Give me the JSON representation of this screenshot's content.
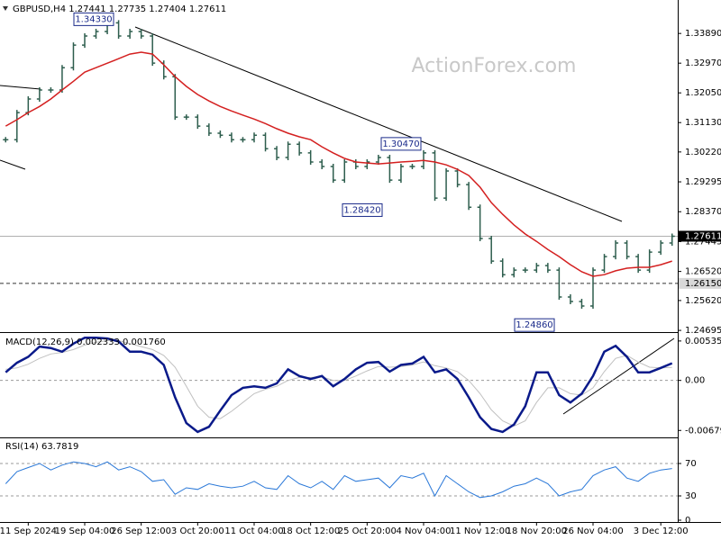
{
  "chart_data": [
    {
      "type": "price",
      "title": "GBPUSD,H4  1.27441 1.27735 1.27404 1.27611",
      "watermark": "ActionForex.com",
      "ylim": [
        1.2467,
        1.3487
      ],
      "yticks": [
        {
          "value": 1.3389,
          "label": "1.33890"
        },
        {
          "value": 1.3297,
          "label": "1.32970"
        },
        {
          "value": 1.3205,
          "label": "1.32050"
        },
        {
          "value": 1.3113,
          "label": "1.31130"
        },
        {
          "value": 1.3022,
          "label": "1.30220"
        },
        1.29295,
        {
          "value": 1.2837,
          "label": "1.28370"
        },
        1.27445,
        {
          "value": 1.2652,
          "label": "1.26520"
        },
        {
          "value": 1.2562,
          "label": "1.25620"
        },
        1.24695
      ],
      "current": 1.27611,
      "level": {
        "value": 1.2615,
        "label": "1.26150"
      },
      "annotations": [
        {
          "value": 1.3433,
          "label": "1.34330"
        },
        {
          "value": 1.3047,
          "label": "1.30470"
        },
        {
          "value": 1.2842,
          "label": "1.28420"
        },
        {
          "value": 1.2486,
          "label": "1.24860"
        }
      ],
      "series": [
        {
          "type": "bar",
          "color": "#2e5e4e",
          "values": [
            1.306,
            1.3144,
            1.3186,
            1.3214,
            1.3214,
            1.3283,
            1.3353,
            1.3381,
            1.3395,
            1.3422,
            1.3381,
            1.3395,
            1.3381,
            1.3297,
            1.3255,
            1.313,
            1.313,
            1.3102,
            1.308,
            1.3074,
            1.306,
            1.306,
            1.3074,
            1.3032,
            1.3005,
            1.3046,
            1.3019,
            1.2991,
            1.2977,
            1.2935,
            1.2991,
            1.2977,
            1.2991,
            1.3005,
            1.2935,
            1.2977,
            1.2977,
            1.3019,
            1.2879,
            1.2963,
            1.2921,
            1.2851,
            1.2754,
            1.2684,
            1.2642,
            1.2656,
            1.2656,
            1.267,
            1.2656,
            1.2573,
            1.2559,
            1.2545,
            1.2656,
            1.2698,
            1.274,
            1.2698,
            1.2656,
            1.2712,
            1.274,
            1.27611
          ]
        },
        {
          "type": "line",
          "color": "#d42020",
          "values": [
            1.3102,
            1.3122,
            1.3144,
            1.3163,
            1.3186,
            1.3214,
            1.3241,
            1.3269,
            1.3283,
            1.3297,
            1.3311,
            1.3325,
            1.3331,
            1.3325,
            1.3292,
            1.3255,
            1.3225,
            1.32,
            1.318,
            1.3163,
            1.3149,
            1.3136,
            1.3124,
            1.311,
            1.3094,
            1.308,
            1.3069,
            1.306,
            1.3038,
            1.3019,
            1.3002,
            1.2991,
            1.2988,
            1.2985,
            1.2988,
            1.2991,
            1.2993,
            1.2996,
            1.2991,
            1.2982,
            1.2968,
            1.2949,
            1.2913,
            1.2865,
            1.2829,
            1.2796,
            1.2768,
            1.2745,
            1.272,
            1.2698,
            1.2673,
            1.2651,
            1.2637,
            1.2642,
            1.2654,
            1.2662,
            1.2665,
            1.2665,
            1.2673,
            1.2684
          ]
        }
      ]
    },
    {
      "type": "line",
      "title": "MACD(12,26,9) 0.002333 0.001760",
      "ylim": [
        -0.0075,
        0.0062
      ],
      "yticks": [
        0.005359,
        {
          "value": 0,
          "label": "0.00"
        },
        -0.006798
      ],
      "levels": [
        0
      ],
      "series": [
        {
          "type": "line",
          "color": "#c0c0c0",
          "width": 1,
          "values": [
            0.0015,
            0.0017,
            0.0022,
            0.003,
            0.0036,
            0.0038,
            0.0042,
            0.0048,
            0.0052,
            0.0054,
            0.0054,
            0.005,
            0.0046,
            0.0042,
            0.0034,
            0.0018,
            -0.0008,
            -0.0035,
            -0.005,
            -0.0052,
            -0.0042,
            -0.003,
            -0.0018,
            -0.0012,
            -0.0008,
            0.0,
            0.0004,
            0.0004,
            0.0005,
            0.0,
            0.0,
            0.0006,
            0.0013,
            0.0019,
            0.0018,
            0.0019,
            0.0021,
            0.0025,
            0.002,
            0.0017,
            0.0012,
            0.0,
            -0.0018,
            -0.004,
            -0.0055,
            -0.0062,
            -0.0055,
            -0.003,
            -0.001,
            -0.001,
            -0.0018,
            -0.002,
            -0.001,
            0.0012,
            0.003,
            0.0034,
            0.0025,
            0.0018,
            0.0017,
            0.00176
          ]
        },
        {
          "type": "line",
          "color": "#0a1a8a",
          "width": 2.5,
          "values": [
            0.0011,
            0.0024,
            0.0032,
            0.0046,
            0.0044,
            0.0039,
            0.005,
            0.0058,
            0.0058,
            0.0057,
            0.0053,
            0.0039,
            0.0039,
            0.0035,
            0.0021,
            -0.0023,
            -0.0058,
            -0.007,
            -0.0063,
            -0.0041,
            -0.002,
            -0.001,
            -0.0008,
            -0.001,
            -0.0004,
            0.0015,
            0.0006,
            0.0002,
            0.0006,
            -0.0008,
            0.0002,
            0.0015,
            0.0024,
            0.0025,
            0.0012,
            0.0021,
            0.0023,
            0.0032,
            0.0011,
            0.0015,
            0.0002,
            -0.0023,
            -0.005,
            -0.0066,
            -0.007,
            -0.006,
            -0.0035,
            0.0011,
            0.0011,
            -0.002,
            -0.003,
            -0.0018,
            0.0006,
            0.0039,
            0.0047,
            0.0032,
            0.0011,
            0.0011,
            0.0017,
            0.002333
          ]
        }
      ]
    },
    {
      "type": "line",
      "title": "RSI(14) 63.7819",
      "ylim": [
        0,
        100
      ],
      "yticks": [
        70,
        30,
        0
      ],
      "levels": [
        30,
        70
      ],
      "categories": [
        null,
        null,
        "11 Sep 2024",
        null,
        null,
        null,
        null,
        "19 Sep 04:00",
        null,
        null,
        null,
        null,
        "26 Sep 12:00",
        null,
        null,
        null,
        null,
        "3 Oct 20:00",
        null,
        null,
        null,
        null,
        "11 Oct 04:00",
        null,
        null,
        null,
        null,
        "18 Oct 12:00",
        null,
        null,
        null,
        null,
        "25 Oct 20:00",
        null,
        null,
        null,
        null,
        "4 Nov 04:00",
        null,
        null,
        null,
        null,
        "11 Nov 12:00",
        null,
        null,
        null,
        null,
        "18 Nov 20:00",
        null,
        null,
        null,
        null,
        "26 Nov 04:00",
        null,
        null,
        null,
        null,
        null,
        "3 Dec 12:00",
        null
      ],
      "series": [
        {
          "type": "line",
          "color": "#2a78d8",
          "width": 1,
          "values": [
            45,
            60,
            65,
            70,
            62,
            68,
            72,
            70,
            66,
            72,
            62,
            66,
            60,
            48,
            50,
            32,
            40,
            38,
            45,
            42,
            40,
            42,
            48,
            40,
            38,
            55,
            45,
            40,
            48,
            38,
            55,
            48,
            50,
            52,
            40,
            55,
            52,
            58,
            30,
            55,
            45,
            35,
            28,
            30,
            35,
            42,
            45,
            52,
            45,
            30,
            35,
            38,
            55,
            62,
            66,
            52,
            48,
            58,
            62,
            63.7819
          ]
        }
      ]
    }
  ]
}
